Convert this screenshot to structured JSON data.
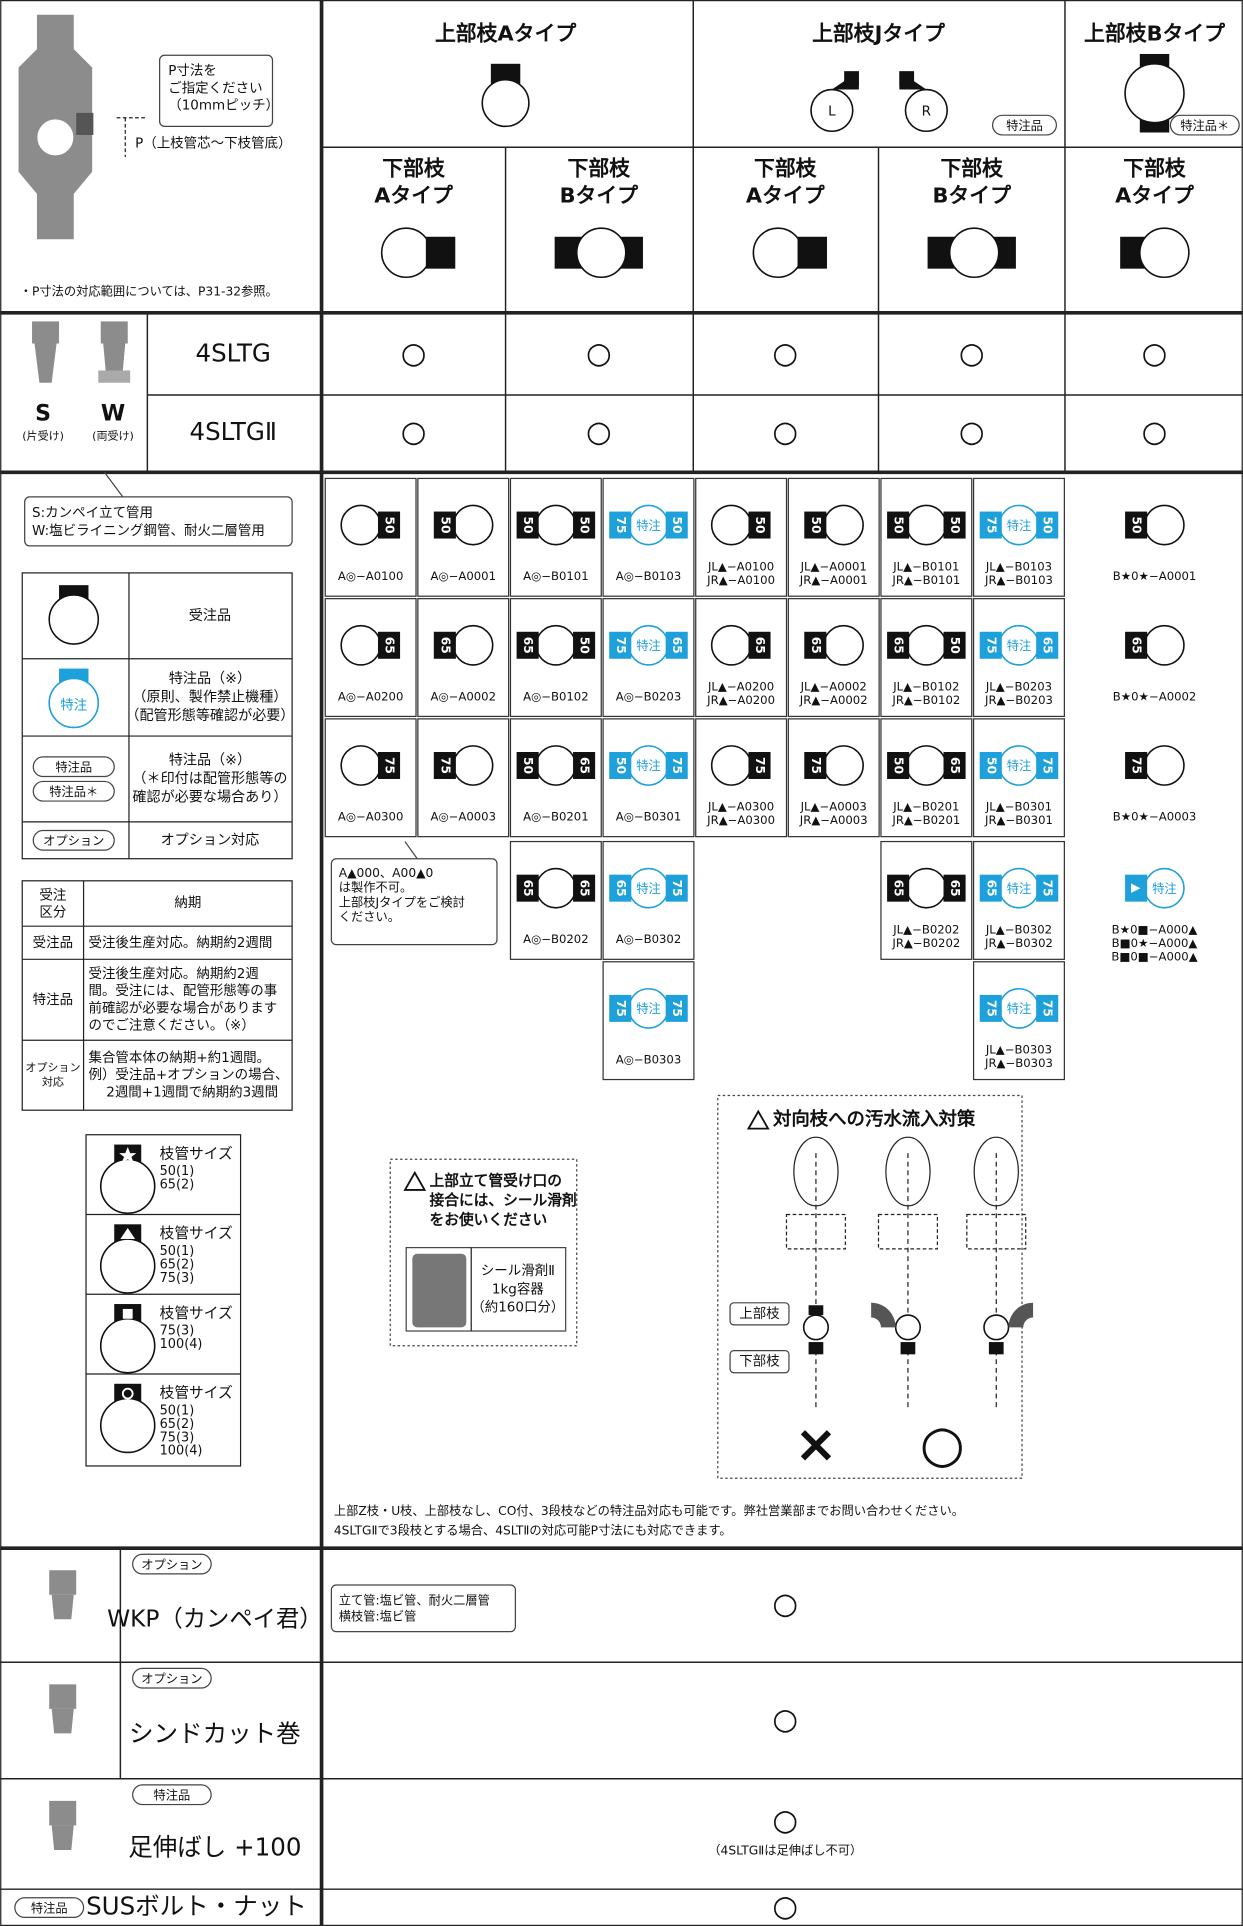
{
  "header": {
    "note_p": [
      "P寸法を",
      "ご指定ください",
      "（10mmピッチ）"
    ],
    "p_label": "P（上枝管芯～下枝管底）",
    "range_note": "・P寸法の対応範囲については、P31-32参照。",
    "upper_types": [
      "上部枝Aタイプ",
      "上部枝Jタイプ",
      "上部枝Bタイプ"
    ],
    "j_labels": [
      "L",
      "R"
    ],
    "badge_j": "特注品",
    "badge_b": "特注品＊",
    "lower_types": [
      [
        "下部枝",
        "Aタイプ"
      ],
      [
        "下部枝",
        "Bタイプ"
      ],
      [
        "下部枝",
        "Aタイプ"
      ],
      [
        "下部枝",
        "Bタイプ"
      ],
      [
        "下部枝",
        "Aタイプ"
      ]
    ]
  },
  "models": {
    "s": "S",
    "w": "W",
    "s_note": "(片受け)",
    "w_note": "(両受け)",
    "rows": [
      {
        "name": "4SLTG",
        "marks": [
          "○",
          "○",
          "○",
          "○",
          "○"
        ]
      },
      {
        "name": "4SLTGⅡ",
        "marks": [
          "○",
          "○",
          "○",
          "○",
          "○"
        ]
      }
    ]
  },
  "grid": {
    "rows": [
      [
        {
          "r": "50",
          "code": [
            "A◎−A0100"
          ]
        },
        {
          "l": "50",
          "code": [
            "A◎−A0001"
          ]
        },
        {
          "l": "50",
          "r": "50",
          "code": [
            "A◎−B0101"
          ]
        },
        {
          "l": "75",
          "tag": "特注",
          "r": "50",
          "code": [
            "A◎−B0103"
          ]
        },
        {
          "r": "50",
          "code": [
            "JL▲−A0100",
            "JR▲−A0100"
          ]
        },
        {
          "l": "50",
          "code": [
            "JL▲−A0001",
            "JR▲−A0001"
          ]
        },
        {
          "l": "50",
          "r": "50",
          "code": [
            "JL▲−B0101",
            "JR▲−B0101"
          ]
        },
        {
          "l": "75",
          "tag": "特注",
          "r": "50",
          "code": [
            "JL▲−B0103",
            "JR▲−B0103"
          ]
        },
        {
          "l": "50",
          "code": [
            "B★0★−A0001"
          ]
        }
      ],
      [
        {
          "r": "65",
          "code": [
            "A◎−A0200"
          ]
        },
        {
          "l": "65",
          "code": [
            "A◎−A0002"
          ]
        },
        {
          "l": "65",
          "r": "50",
          "code": [
            "A◎−B0102"
          ]
        },
        {
          "l": "75",
          "tag": "特注",
          "r": "65",
          "code": [
            "A◎−B0203"
          ]
        },
        {
          "r": "65",
          "code": [
            "JL▲−A0200",
            "JR▲−A0200"
          ]
        },
        {
          "l": "65",
          "code": [
            "JL▲−A0002",
            "JR▲−A0002"
          ]
        },
        {
          "l": "65",
          "r": "50",
          "code": [
            "JL▲−B0102",
            "JR▲−B0102"
          ]
        },
        {
          "l": "75",
          "tag": "特注",
          "r": "65",
          "code": [
            "JL▲−B0203",
            "JR▲−B0203"
          ]
        },
        {
          "l": "65",
          "code": [
            "B★0★−A0002"
          ]
        }
      ],
      [
        {
          "r": "75",
          "code": [
            "A◎−A0300"
          ]
        },
        {
          "l": "75",
          "code": [
            "A◎−A0003"
          ]
        },
        {
          "l": "50",
          "r": "65",
          "code": [
            "A◎−B0201"
          ]
        },
        {
          "l": "50",
          "tag": "特注",
          "r": "75",
          "code": [
            "A◎−B0301"
          ]
        },
        {
          "r": "75",
          "code": [
            "JL▲−A0300",
            "JR▲−A0300"
          ]
        },
        {
          "l": "75",
          "code": [
            "JL▲−A0003",
            "JR▲−A0003"
          ]
        },
        {
          "l": "50",
          "r": "65",
          "code": [
            "JL▲−B0201",
            "JR▲−B0201"
          ]
        },
        {
          "l": "50",
          "tag": "特注",
          "r": "75",
          "code": [
            "JL▲−B0301",
            "JR▲−B0301"
          ]
        },
        {
          "l": "75",
          "code": [
            "B★0★−A0003"
          ]
        }
      ],
      [
        null,
        null,
        {
          "l": "65",
          "r": "65",
          "code": [
            "A◎−B0202"
          ]
        },
        {
          "l": "65",
          "tag": "特注",
          "r": "75",
          "code": [
            "A◎−B0302"
          ]
        },
        null,
        null,
        {
          "l": "65",
          "r": "65",
          "code": [
            "JL▲−B0202",
            "JR▲−B0202"
          ]
        },
        {
          "l": "65",
          "tag": "特注",
          "r": "75",
          "code": [
            "JL▲−B0302",
            "JR▲−B0302"
          ]
        },
        {
          "l": "▲",
          "tag": "特注",
          "code": [
            "B★0■−A000▲",
            "B■0★−A000▲",
            "B■0■−A000▲"
          ]
        }
      ],
      [
        null,
        null,
        null,
        {
          "l": "75",
          "tag": "特注",
          "r": "75",
          "code": [
            "A◎−B0303"
          ]
        },
        null,
        null,
        null,
        {
          "l": "75",
          "tag": "特注",
          "r": "75",
          "code": [
            "JL▲−B0303",
            "JR▲−B0303"
          ]
        },
        null
      ]
    ],
    "note": [
      "A▲000、A00▲0",
      "は製作不可。",
      "上部枝Jタイプをご検討",
      "ください。"
    ]
  },
  "legend": {
    "sw": [
      "S:カンペイ立て管用",
      "W:塩ビライニング鋼管、耐火二層管用"
    ],
    "items": [
      {
        "text": [
          "受注品"
        ]
      },
      {
        "icon": "特注",
        "text": [
          "特注品（※）",
          "（原則、製作禁止機種）",
          "（配管形態等確認が必要）"
        ]
      },
      {
        "badges": [
          "特注品",
          "特注品＊"
        ],
        "text": [
          "特注品（※）",
          "（＊印付は配管形態等の",
          "確認が必要な場合あり）"
        ]
      },
      {
        "badges": [
          "オプション"
        ],
        "text": [
          "オプション対応"
        ]
      }
    ],
    "delivery": {
      "head": [
        [
          "受注",
          "区分"
        ],
        "納期"
      ],
      "rows": [
        {
          "k": [
            "受注品"
          ],
          "v": [
            "受注後生産対応。納期約2週間"
          ]
        },
        {
          "k": [
            "特注品"
          ],
          "v": [
            "受注後生産対応。納期約2週",
            "間。受注には、配管形態等の事",
            "前確認が必要な場合があります",
            "のでご注意ください。（※）"
          ]
        },
        {
          "k": [
            "オプション",
            "対応"
          ],
          "v": [
            "集合管本体の納期+約1週間。",
            "例）受注品+オプションの場合、",
            "　 2週間+1週間で納期約3週間"
          ]
        }
      ]
    },
    "sizes": [
      {
        "label": "枝管サイズ",
        "list": [
          "50(1)",
          "65(2)"
        ]
      },
      {
        "label": "枝管サイズ",
        "list": [
          "50(1)",
          "65(2)",
          "75(3)"
        ]
      },
      {
        "label": "枝管サイズ",
        "list": [
          "75(3)",
          "100(4)"
        ]
      },
      {
        "label": "枝管サイズ",
        "list": [
          "50(1)",
          "65(2)",
          "75(3)",
          "100(4)"
        ]
      }
    ]
  },
  "notice": {
    "text": [
      "上部立て管受け口の",
      "接合には、シール滑剤",
      "をお使いください"
    ],
    "product": [
      "シール滑剤Ⅱ",
      "1kg容器",
      "（約160口分）"
    ]
  },
  "diagram": {
    "title": "対向枝への汚水流入対策",
    "upper": "上部枝",
    "lower": "下部枝",
    "ng": "×",
    "ok": "○"
  },
  "footer_note": [
    "上部Z枝・U枝、上部枝なし、CO付、3段枝などの特注品対応も可能です。弊社営業部までお問い合わせください。",
    "4SLTGⅡで3段枝とする場合、4SLTⅡの対応可能P寸法にも対応できます。"
  ],
  "options": [
    {
      "badge": "オプション",
      "name": "WKP（カンペイ君）",
      "note": [
        "立て管:塩ビ管、耐火二層管",
        "横枝管:塩ビ管"
      ],
      "mark": "○"
    },
    {
      "badge": "オプション",
      "name": "シンドカット巻",
      "mark": "○"
    },
    {
      "badge": "特注品",
      "name": "足伸ばし +100",
      "mark": "○",
      "mark_note": "（4SLTGⅡは足伸ばし不可）"
    },
    {
      "badge": "特注品",
      "name": "SUSボルト・ナット",
      "mark": "○"
    }
  ]
}
